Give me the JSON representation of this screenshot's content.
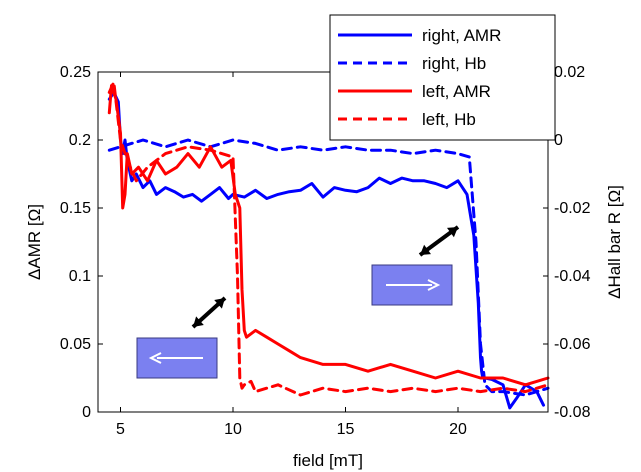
{
  "chart_data": {
    "type": "line",
    "xlabel": "field [mT]",
    "ylabel": "ΔAMR [Ω]",
    "y2label": "ΔHall bar R [Ω]",
    "xlim": [
      4,
      24
    ],
    "ylim": [
      0,
      0.25
    ],
    "y2lim": [
      -0.08,
      0.02
    ],
    "xticks": [
      "5",
      "10",
      "15",
      "20"
    ],
    "yticks": [
      "0",
      "0.05",
      "0.1",
      "0.15",
      "0.2",
      "0.25"
    ],
    "y2ticks": [
      "-0.08",
      "-0.06",
      "-0.04",
      "-0.02",
      "0",
      "0.02"
    ],
    "legend": {
      "placement": "top-right"
    },
    "colors": {
      "blue": "#0000ff",
      "red": "#ff0000",
      "box": "#7b80f0"
    },
    "series": [
      {
        "name": "right, AMR",
        "axis": "left",
        "style": "solid",
        "color": "#0000ff",
        "x": [
          4.5,
          4.7,
          4.9,
          5.0,
          5.1,
          5.2,
          5.3,
          5.5,
          5.7,
          6.0,
          6.3,
          6.6,
          7.0,
          7.4,
          7.8,
          8.2,
          8.6,
          9.0,
          9.4,
          9.8,
          10.0,
          10.5,
          11.0,
          11.5,
          12.0,
          12.5,
          13.0,
          13.5,
          14.0,
          14.5,
          15.0,
          15.5,
          16.0,
          16.5,
          17.0,
          17.5,
          18.0,
          18.5,
          19.0,
          19.5,
          20.0,
          20.4,
          20.7,
          20.9,
          21.0,
          21.05,
          21.1,
          21.2,
          21.5,
          22.0,
          22.3,
          22.6,
          23.0,
          23.5,
          23.8
        ],
        "values": [
          0.23,
          0.235,
          0.228,
          0.2,
          0.19,
          0.2,
          0.185,
          0.17,
          0.175,
          0.165,
          0.17,
          0.16,
          0.165,
          0.162,
          0.158,
          0.16,
          0.155,
          0.16,
          0.165,
          0.157,
          0.16,
          0.158,
          0.163,
          0.157,
          0.16,
          0.162,
          0.163,
          0.168,
          0.158,
          0.165,
          0.163,
          0.162,
          0.165,
          0.172,
          0.168,
          0.172,
          0.17,
          0.17,
          0.168,
          0.165,
          0.17,
          0.16,
          0.13,
          0.08,
          0.04,
          0.03,
          0.025,
          0.025,
          0.024,
          0.02,
          0.003,
          0.01,
          0.02,
          0.015,
          0.005
        ]
      },
      {
        "name": "right, Hb",
        "axis": "right",
        "style": "dashed",
        "color": "#0000ff",
        "x": [
          4.5,
          5.0,
          6.0,
          7.0,
          8.0,
          9.0,
          10.0,
          11.0,
          12.0,
          13.0,
          14.0,
          15.0,
          16.0,
          17.0,
          18.0,
          19.0,
          20.0,
          20.5,
          20.8,
          21.0,
          21.2,
          21.5,
          22.0,
          23.0,
          24.0
        ],
        "values": [
          -0.003,
          -0.002,
          0.0,
          -0.002,
          0.0,
          -0.002,
          0.0,
          -0.001,
          -0.003,
          -0.002,
          -0.003,
          -0.002,
          -0.003,
          -0.003,
          -0.004,
          -0.003,
          -0.004,
          -0.005,
          -0.03,
          -0.06,
          -0.072,
          -0.074,
          -0.074,
          -0.075,
          -0.073
        ]
      },
      {
        "name": "left, AMR",
        "axis": "left",
        "style": "solid",
        "color": "#ff0000",
        "x": [
          4.5,
          4.6,
          4.8,
          5.0,
          5.1,
          5.2,
          5.3,
          5.5,
          5.8,
          6.2,
          6.6,
          7.0,
          7.5,
          8.0,
          8.5,
          9.0,
          9.5,
          9.9,
          10.1,
          10.3,
          10.4,
          10.5,
          10.6,
          11.0,
          11.5,
          12.0,
          12.5,
          13.0,
          14.0,
          15.0,
          16.0,
          17.0,
          18.0,
          19.0,
          20.0,
          21.0,
          22.0,
          23.0,
          24.0
        ],
        "values": [
          0.22,
          0.24,
          0.23,
          0.205,
          0.15,
          0.16,
          0.19,
          0.175,
          0.18,
          0.17,
          0.185,
          0.175,
          0.18,
          0.19,
          0.18,
          0.195,
          0.18,
          0.185,
          0.16,
          0.15,
          0.09,
          0.06,
          0.055,
          0.06,
          0.055,
          0.05,
          0.045,
          0.04,
          0.035,
          0.035,
          0.03,
          0.035,
          0.03,
          0.025,
          0.03,
          0.025,
          0.025,
          0.02,
          0.025
        ]
      },
      {
        "name": "left, Hb",
        "axis": "right",
        "style": "dashed",
        "color": "#ff0000",
        "x": [
          4.5,
          4.7,
          5.0,
          5.3,
          5.7,
          6.2,
          7.0,
          8.0,
          9.0,
          10.0,
          10.2,
          10.3,
          10.4,
          10.5,
          10.8,
          11.0,
          12.0,
          13.0,
          14.0,
          15.0,
          16.0,
          17.0,
          18.0,
          19.0,
          20.0,
          21.0,
          22.0,
          23.0,
          24.0
        ],
        "values": [
          0.014,
          0.017,
          0.0,
          -0.006,
          -0.012,
          -0.008,
          -0.004,
          -0.002,
          -0.003,
          -0.005,
          -0.04,
          -0.07,
          -0.073,
          -0.072,
          -0.071,
          -0.074,
          -0.072,
          -0.075,
          -0.073,
          -0.074,
          -0.073,
          -0.074,
          -0.073,
          -0.074,
          -0.073,
          -0.074,
          -0.073,
          -0.074,
          -0.072
        ]
      }
    ]
  }
}
